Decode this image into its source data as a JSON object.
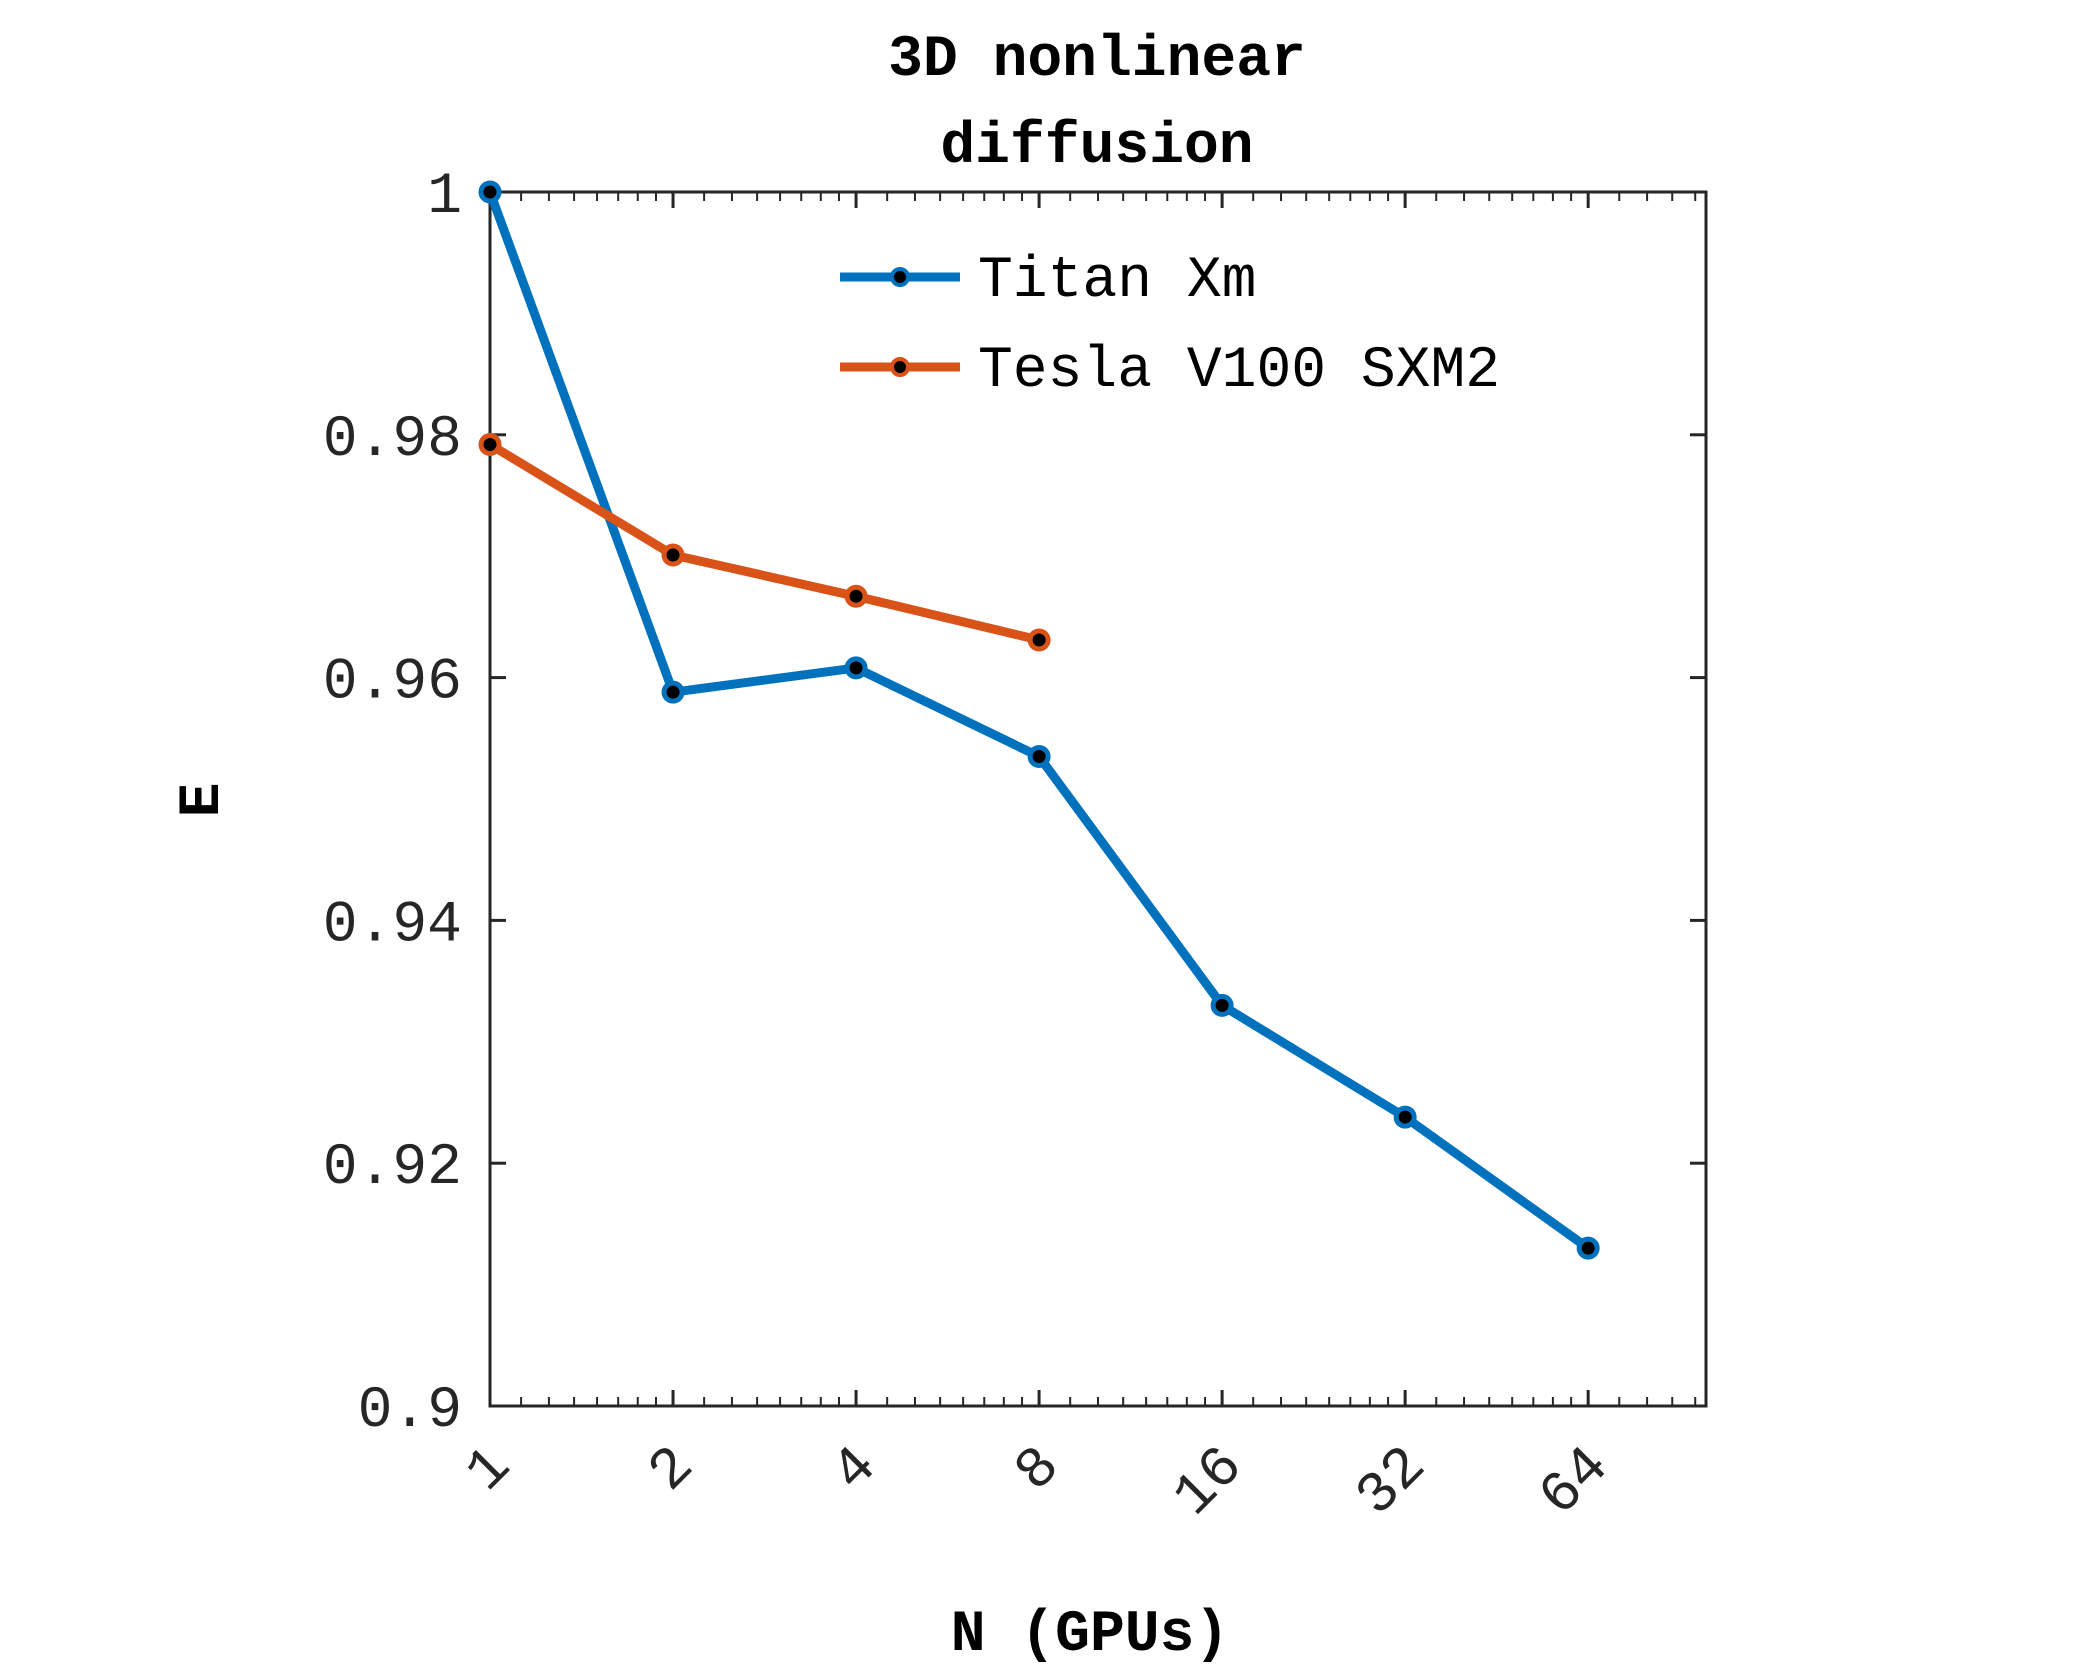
{
  "chart_data": {
    "type": "line",
    "title": [
      "3D nonlinear",
      "diffusion"
    ],
    "xlabel": "N (GPUs)",
    "ylabel": "E",
    "xscale": "log2",
    "xlim": [
      1,
      100
    ],
    "ylim": [
      0.9,
      1.0
    ],
    "x_ticks": [
      1,
      2,
      4,
      8,
      16,
      32,
      64
    ],
    "x_tick_labels": [
      "1",
      "2",
      "4",
      "8",
      "16",
      "32",
      "64"
    ],
    "y_ticks": [
      0.9,
      0.92,
      0.94,
      0.96,
      0.98,
      1.0
    ],
    "y_tick_labels": [
      "0.9",
      "0.92",
      "0.94",
      "0.96",
      "0.98",
      "1"
    ],
    "grid": false,
    "legend_position": "top-right",
    "series": [
      {
        "name": "Titan Xm",
        "color": "#0072BD",
        "x": [
          1,
          2,
          4,
          8,
          16,
          32,
          64
        ],
        "y": [
          1.0,
          0.9588,
          0.9608,
          0.9535,
          0.933,
          0.9238,
          0.913
        ]
      },
      {
        "name": "Tesla V100 SXM2",
        "color": "#D95319",
        "x": [
          1,
          2,
          4,
          8
        ],
        "y": [
          0.9792,
          0.9701,
          0.9667,
          0.9631
        ]
      }
    ]
  }
}
